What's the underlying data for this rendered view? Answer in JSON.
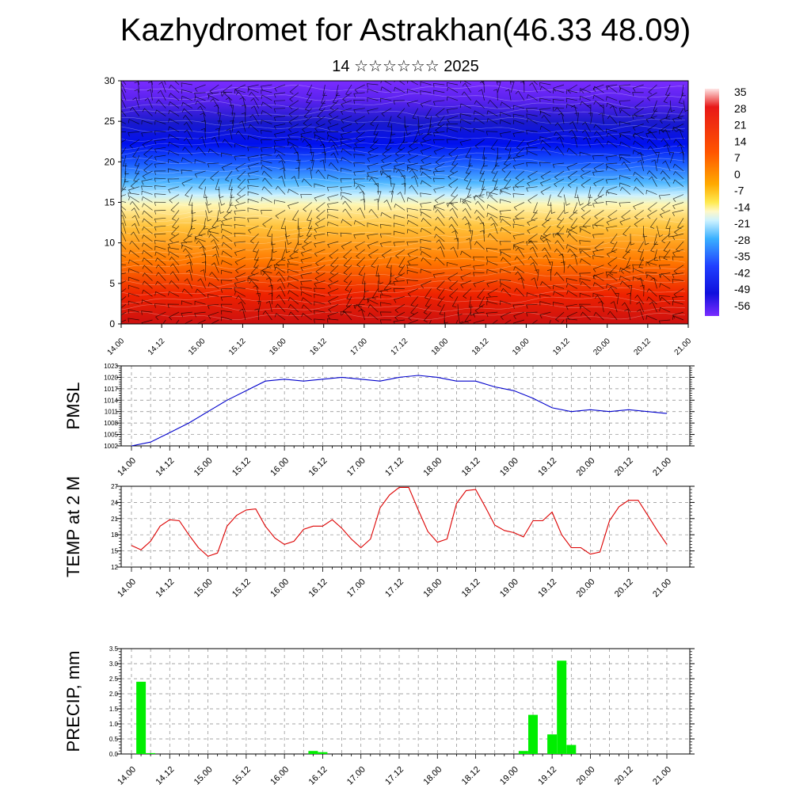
{
  "title": "Kazhydromet for Astrakhan(46.33 48.09)",
  "subtitle": "14 ☆☆☆☆☆☆ 2025",
  "chart_data": [
    {
      "type": "heatmap",
      "ylim": [
        0,
        30
      ],
      "yticks": [
        "0",
        "5",
        "10",
        "15",
        "20",
        "25",
        "30"
      ],
      "xticks": [
        "14.00",
        "14.12",
        "15.00",
        "15.12",
        "16.00",
        "16.12",
        "17.00",
        "17.12",
        "18.00",
        "18.12",
        "19.00",
        "19.12",
        "20.00",
        "20.12",
        "21.00"
      ],
      "colorbar_labels": [
        "35",
        "28",
        "21",
        "14",
        "7",
        "0",
        "-7",
        "-14",
        "-21",
        "-28",
        "-35",
        "-42",
        "-49",
        "-56"
      ],
      "overlay": "wind barbs"
    },
    {
      "type": "line",
      "ylabel": "PMSL",
      "ylim": [
        1002,
        1023
      ],
      "yticks": [
        "1002",
        "1005",
        "1008",
        "1011",
        "1014",
        "1017",
        "1020",
        "1023"
      ],
      "xticks": [
        "14.00",
        "14.12",
        "15.00",
        "15.12",
        "16.00",
        "16.12",
        "17.00",
        "17.12",
        "18.00",
        "18.12",
        "19.00",
        "19.12",
        "20.00",
        "20.12",
        "21.00"
      ],
      "color": "#0000cc",
      "x_hours": [
        0,
        6,
        12,
        18,
        24,
        30,
        36,
        42,
        48,
        54,
        60,
        66,
        72,
        78,
        84,
        90,
        96,
        102,
        108,
        114,
        120,
        126,
        132,
        138,
        144,
        150,
        156,
        162,
        168
      ],
      "values": [
        1002,
        1003,
        1005.5,
        1008,
        1011,
        1014,
        1016.5,
        1019,
        1019.5,
        1019,
        1019.5,
        1020,
        1019.5,
        1019,
        1020,
        1020.5,
        1020,
        1019,
        1019,
        1017.5,
        1016.5,
        1014.5,
        1012,
        1011,
        1011.5,
        1011,
        1011.5,
        1011,
        1010.5
      ]
    },
    {
      "type": "line",
      "ylabel": "TEMP at 2 M",
      "ylim": [
        12,
        27
      ],
      "yticks": [
        "12",
        "15",
        "18",
        "21",
        "24",
        "27"
      ],
      "xticks": [
        "14.00",
        "14.12",
        "15.00",
        "15.12",
        "16.00",
        "16.12",
        "17.00",
        "17.12",
        "18.00",
        "18.12",
        "19.00",
        "19.12",
        "20.00",
        "20.12",
        "21.00"
      ],
      "color": "#dd0000",
      "x_hours": [
        0,
        3,
        6,
        9,
        12,
        15,
        18,
        21,
        24,
        27,
        30,
        33,
        36,
        39,
        42,
        45,
        48,
        51,
        54,
        57,
        60,
        63,
        66,
        69,
        72,
        75,
        78,
        81,
        84,
        87,
        90,
        93,
        96,
        99,
        102,
        105,
        108,
        111,
        114,
        117,
        120,
        123,
        126,
        129,
        132,
        135,
        138,
        141,
        144,
        147,
        150,
        153,
        156,
        159,
        162,
        165,
        168
      ],
      "values": [
        16,
        15.2,
        16.8,
        19.6,
        20.8,
        20.6,
        18,
        15.6,
        14,
        14.6,
        19.6,
        21.6,
        22.6,
        22.8,
        19.6,
        17.4,
        16.2,
        16.8,
        19,
        19.6,
        19.6,
        20.8,
        19.2,
        17.2,
        15.6,
        17.2,
        23,
        25.4,
        26.8,
        26.8,
        22.6,
        18.6,
        16.6,
        17.2,
        23.8,
        26.2,
        26.4,
        23.2,
        19.8,
        18.8,
        18.4,
        17.6,
        20.6,
        20.6,
        22.2,
        18,
        15.6,
        15.6,
        14.4,
        14.8,
        20.6,
        23.2,
        24.4,
        24.4,
        21.6,
        18.8,
        16.2
      ]
    },
    {
      "type": "bar",
      "ylabel": "PRECIP, mm",
      "ylim": [
        0,
        3.5
      ],
      "yticks": [
        "0.0",
        "0.5",
        "1.0",
        "1.5",
        "2.0",
        "2.5",
        "3.0",
        "3.5"
      ],
      "xticks": [
        "14.00",
        "14.12",
        "15.00",
        "15.12",
        "16.00",
        "16.12",
        "17.00",
        "17.12",
        "18.00",
        "18.12",
        "19.00",
        "19.12",
        "20.00",
        "20.12",
        "21.00"
      ],
      "color": "#00ee00",
      "x_hours": [
        3,
        6,
        57,
        60,
        123,
        126,
        132,
        135,
        138
      ],
      "values": [
        2.4,
        0.03,
        0.1,
        0.06,
        0.1,
        1.3,
        0.65,
        3.1,
        0.3
      ]
    }
  ]
}
